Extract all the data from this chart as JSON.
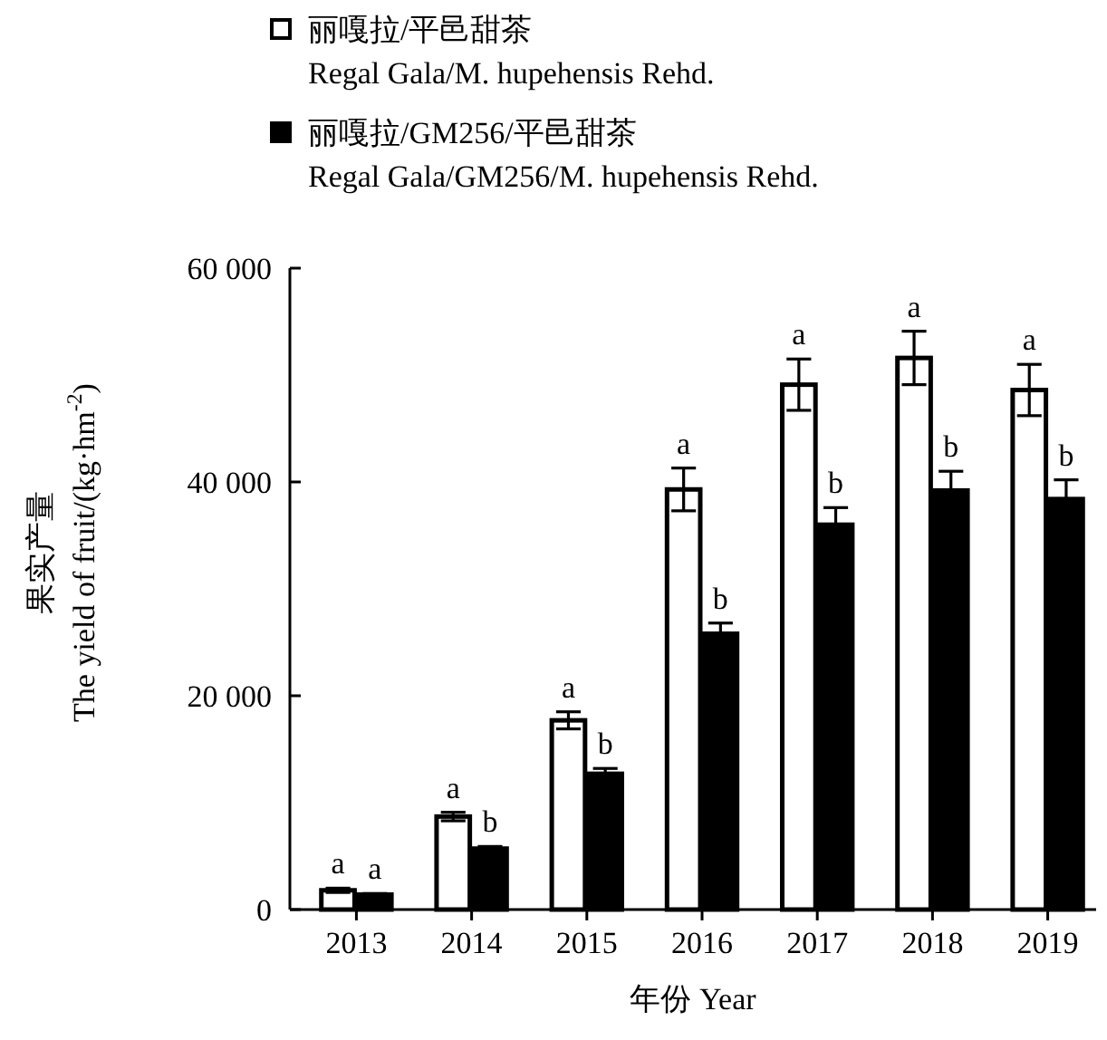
{
  "chart_data": {
    "type": "bar",
    "xlabel": "年份 Year",
    "ylabel": "果实产量\nThe yield of fruit/(kg·hm$^{-2}$)",
    "categories": [
      "2013",
      "2014",
      "2015",
      "2016",
      "2017",
      "2018",
      "2019"
    ],
    "series": [
      {
        "name": "丽嘎拉/平邑甜茶\nRegal Gala/M. hupehensis Rehd.",
        "color": "#ffffff",
        "values": [
          1800,
          8700,
          17700,
          39300,
          49100,
          51600,
          48600
        ],
        "errors": [
          200,
          400,
          800,
          2000,
          2400,
          2500,
          2400
        ]
      },
      {
        "name": "丽嘎拉/GM256/平邑甜茶\nRegal Gala/GM256/M. hupehensis Rehd.",
        "color": "#000000",
        "values": [
          1400,
          5700,
          12700,
          25800,
          36000,
          39200,
          38400
        ],
        "errors": [
          100,
          200,
          500,
          1000,
          1600,
          1800,
          1800
        ]
      }
    ],
    "ylim": [
      0,
      60000
    ],
    "yticks": [
      0,
      {
        "value": 20000,
        "label": "20 000"
      },
      {
        "value": 40000,
        "label": "40 000"
      },
      {
        "value": 60000,
        "label": "60 000"
      }
    ],
    "grid": false,
    "legend": "top left",
    "annotations": [
      {
        "text": "a",
        "x": "2013",
        "y": 1800
      },
      {
        "text": "a",
        "x": "2013",
        "y": 1400
      },
      {
        "text": "a",
        "x": "2014",
        "y": 8700
      },
      {
        "text": "b",
        "x": "2014",
        "y": 5700
      },
      {
        "text": "a",
        "x": "2015",
        "y": 17700
      },
      {
        "text": "b",
        "x": "2015",
        "y": 12700
      },
      {
        "text": "a",
        "x": "2016",
        "y": 39300
      },
      {
        "text": "b",
        "x": "2016",
        "y": 25800
      },
      {
        "text": "a",
        "x": "2017",
        "y": 49100
      },
      {
        "text": "b",
        "x": "2017",
        "y": 36000
      },
      {
        "text": "a",
        "x": "2018",
        "y": 51600
      },
      {
        "text": "b",
        "x": "2018",
        "y": 39200
      },
      {
        "text": "a",
        "x": "2019",
        "y": 48600
      },
      {
        "text": "b",
        "x": "2019",
        "y": 38400
      }
    ]
  }
}
